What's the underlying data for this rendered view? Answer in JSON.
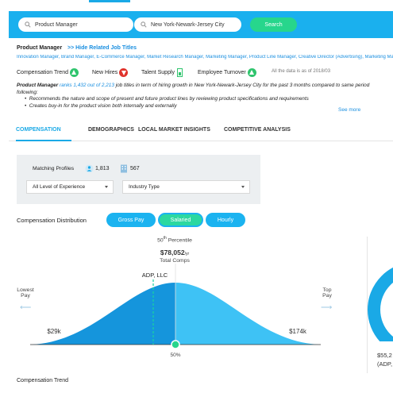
{
  "search": {
    "job_value": "Product Manager",
    "location_value": "New York-Newark-Jersey City",
    "button_label": "Search"
  },
  "job": {
    "title": "Product Manager",
    "hide_related_label": ">> Hide Related Job Titles",
    "related_titles": "Innovation Manager, Brand Manager, E-Commerce Manager, Market Research Manager, Marketing Manager, Product Line Manager, Creative Director (Advertising), Marketing Manager"
  },
  "metrics": [
    {
      "label": "Compensation Trend",
      "icon": "trend-up-icon"
    },
    {
      "label": "New Hires",
      "icon": "trend-down-icon"
    },
    {
      "label": "Talent Supply",
      "icon": "battery-icon"
    },
    {
      "label": "Employee Turnover",
      "icon": "trend-up-icon"
    }
  ],
  "data_as_of": "All the data is as of 2018/03",
  "description": {
    "job": "Product Manager",
    "rank_text": "ranks 1,432 out of 2,213",
    "rest": "job titles in term of hiring growth in New York-Newark-Jersey City for the past 3 months compared to same period",
    "following": "following:",
    "bullets": [
      "Recommends the nature and scope of present and future product lines by reviewing product specifications and requirements",
      "Creates buy-in for the product vision both internally and externally"
    ],
    "see_more": "See more"
  },
  "tabs": [
    "COMPENSATION",
    "DEMOGRAPHICS",
    "LOCAL MARKET INSIGHTS",
    "COMPETITIVE ANALYSIS"
  ],
  "active_tab": "COMPENSATION",
  "filters": {
    "matching_label": "Matching Profiles",
    "count_people": "1,813",
    "count_companies": "567",
    "experience": "All Level of Experience",
    "industry": "Industry Type"
  },
  "distribution": {
    "title": "Compensation Distribution",
    "pills": [
      "Gross Pay",
      "Salaried",
      "Hourly"
    ],
    "active_pill": "Salaried",
    "percentile_num": "50",
    "percentile_sup": "th",
    "percentile_word": "Percentile",
    "median_value": "$78,052",
    "median_unit": "/yr",
    "total_comps": "Total Comps",
    "company_marker": "ADP, LLC",
    "lowest_label": "Lowest",
    "lowest_sub": "Pay",
    "top_label": "Top",
    "top_sub": "Pay",
    "low_value": "$29k",
    "high_value": "$174k",
    "median_pct": "50%",
    "right_value": "$55,2",
    "right_company": "(ADP,"
  },
  "colors": {
    "accent": "#1aa9e6",
    "green": "#27d68c",
    "curve_light": "#3ec2f5",
    "curve_dark": "#1595dc"
  },
  "compensation_trend_title": "Compensation Trend"
}
